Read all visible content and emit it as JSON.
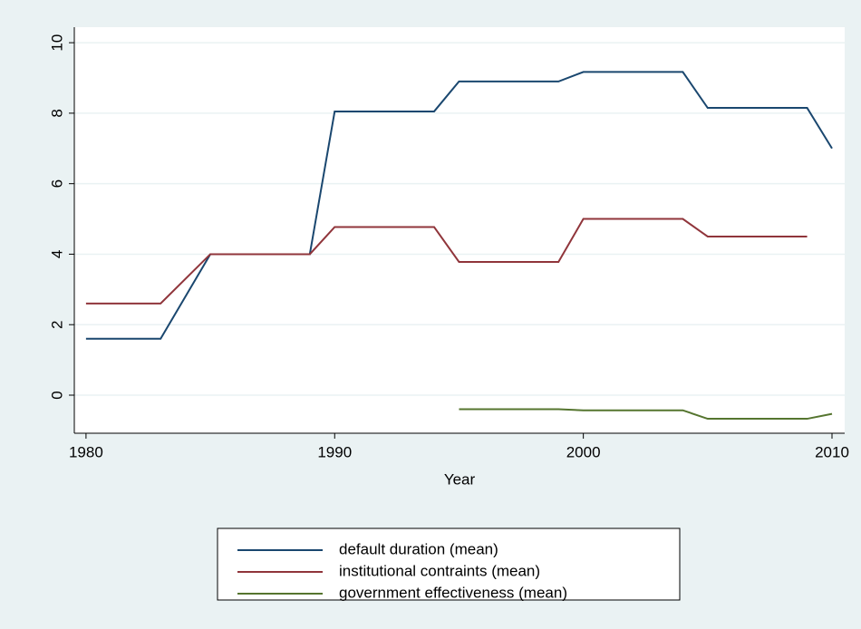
{
  "chart_data": {
    "type": "line",
    "x": [
      1980,
      1983,
      1985,
      1989,
      1990,
      1994,
      1995,
      1999,
      2000,
      2004,
      2005,
      2009,
      2010
    ],
    "series": [
      {
        "name": "default duration (mean)",
        "color": "#1a476f",
        "values": [
          1.6,
          1.6,
          4.0,
          4.0,
          8.05,
          8.05,
          8.9,
          8.9,
          9.17,
          9.17,
          8.15,
          8.15,
          7.0
        ]
      },
      {
        "name": "institutional contraints (mean)",
        "color": "#90353b",
        "values": [
          2.6,
          2.6,
          4.0,
          4.0,
          4.77,
          4.77,
          3.78,
          3.78,
          5.0,
          5.0,
          4.5,
          4.5,
          null
        ]
      },
      {
        "name": "government effectiveness (mean)",
        "color": "#55752f",
        "values": [
          null,
          null,
          null,
          null,
          null,
          null,
          -0.4,
          -0.4,
          -0.43,
          -0.43,
          -0.67,
          -0.67,
          -0.53
        ]
      }
    ],
    "xlabel": "Year",
    "xlim": [
      1979.53,
      2010.51
    ],
    "xticks": [
      1980,
      1990,
      2000,
      2010
    ],
    "ylim": [
      -1.08,
      10.44
    ],
    "yticks": [
      0,
      2,
      4,
      6,
      8,
      10
    ],
    "grid": true,
    "legend": "bottom"
  }
}
